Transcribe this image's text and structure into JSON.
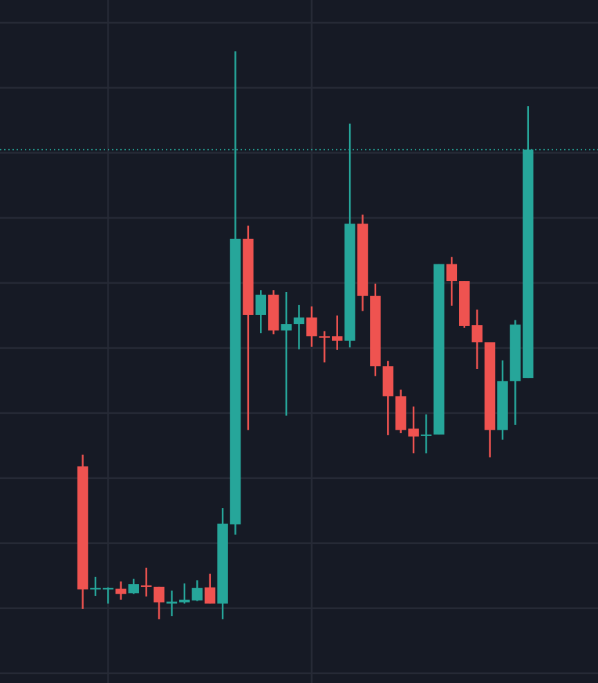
{
  "chart_data": {
    "type": "candlestick",
    "x": [
      0,
      1,
      2,
      3,
      4,
      5,
      6,
      7,
      8,
      9,
      10,
      11,
      12,
      13,
      14,
      15,
      16,
      17,
      18,
      19,
      20,
      21,
      22,
      23,
      24,
      25,
      26,
      27,
      28,
      29,
      30,
      31,
      32,
      33,
      34,
      35
    ],
    "open": [
      2.18,
      0.29,
      0.3,
      0.3,
      0.23,
      0.35,
      0.33,
      0.07,
      0.09,
      0.12,
      0.32,
      0.07,
      1.29,
      5.68,
      4.51,
      4.82,
      4.27,
      4.37,
      4.47,
      4.18,
      4.18,
      4.11,
      5.91,
      4.8,
      3.72,
      3.26,
      2.76,
      2.65,
      2.67,
      5.29,
      5.03,
      4.35,
      4.09,
      2.74,
      3.49,
      3.54
    ],
    "high": [
      2.36,
      0.48,
      0.32,
      0.41,
      0.45,
      0.62,
      0.33,
      0.27,
      0.38,
      0.43,
      0.53,
      1.54,
      8.56,
      5.88,
      4.89,
      4.89,
      4.86,
      4.66,
      4.64,
      4.26,
      4.5,
      7.45,
      6.05,
      4.99,
      3.8,
      3.36,
      3.1,
      2.98,
      5.29,
      5.4,
      5.03,
      4.59,
      4.09,
      3.81,
      4.43,
      7.72
    ],
    "low": [
      -0.01,
      0.19,
      0.07,
      0.13,
      0.22,
      0.18,
      -0.17,
      -0.12,
      0.07,
      0.11,
      0.07,
      -0.17,
      1.13,
      2.74,
      4.23,
      4.21,
      2.96,
      3.98,
      4.02,
      3.78,
      3.97,
      4.01,
      4.57,
      3.57,
      2.66,
      2.69,
      2.38,
      2.38,
      2.67,
      4.65,
      4.31,
      3.68,
      2.32,
      2.59,
      2.82,
      3.54
    ],
    "close": [
      0.29,
      0.31,
      0.31,
      0.22,
      0.37,
      0.33,
      0.09,
      0.1,
      0.13,
      0.31,
      0.07,
      1.3,
      5.68,
      4.51,
      4.82,
      4.27,
      4.37,
      4.47,
      4.18,
      4.16,
      4.11,
      5.91,
      4.8,
      3.72,
      3.26,
      2.74,
      2.64,
      2.67,
      5.29,
      5.03,
      4.34,
      4.09,
      2.74,
      3.49,
      4.36,
      7.05
    ],
    "up_color": "#26a69a",
    "down_color": "#ef5350",
    "xlim": [
      -6.5,
      40.5
    ],
    "xticks": [
      2,
      18
    ],
    "ylim": [
      -1.15,
      9.35
    ],
    "yticks": [
      -1,
      0,
      1,
      2,
      3,
      4,
      5,
      6,
      7,
      8,
      9
    ],
    "grid": true,
    "last_price_line": true
  }
}
